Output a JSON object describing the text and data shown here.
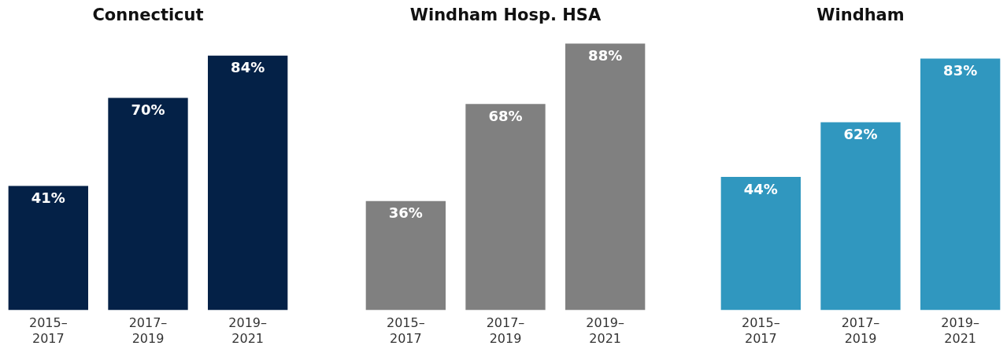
{
  "chart_data": [
    {
      "type": "bar",
      "title": "Connecticut",
      "categories": [
        "2015–2017",
        "2017–2019",
        "2019–2021"
      ],
      "values": [
        41,
        70,
        84
      ],
      "value_labels": [
        "41%",
        "70%",
        "84%"
      ],
      "color": "#042147",
      "grid": false,
      "legend": false,
      "tick_labels": "x"
    },
    {
      "type": "bar",
      "title": "Windham Hosp. HSA",
      "categories": [
        "2015–2017",
        "2017–2019",
        "2019–2021"
      ],
      "values": [
        36,
        68,
        88
      ],
      "value_labels": [
        "36%",
        "68%",
        "88%"
      ],
      "color": "#808080",
      "grid": false,
      "legend": false,
      "tick_labels": "x"
    },
    {
      "type": "bar",
      "title": "Windham",
      "categories": [
        "2015–2017",
        "2017–2019",
        "2019–2021"
      ],
      "values": [
        44,
        62,
        83
      ],
      "value_labels": [
        "44%",
        "62%",
        "83%"
      ],
      "color": "#3097bf",
      "grid": false,
      "legend": false,
      "tick_labels": "x"
    }
  ]
}
